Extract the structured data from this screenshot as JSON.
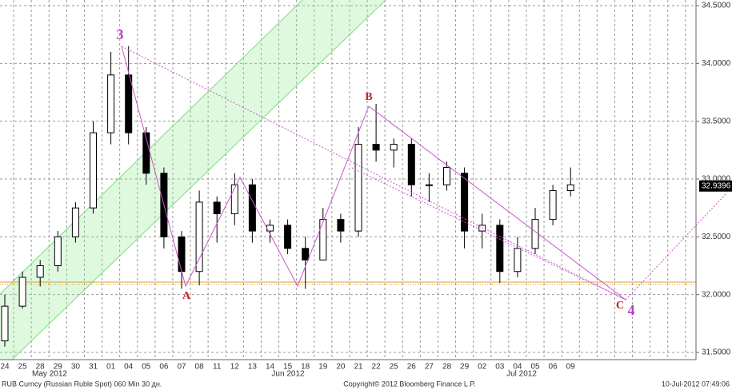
{
  "chart_data": {
    "type": "candlestick",
    "categories": [
      "24",
      "25",
      "28",
      "29",
      "30",
      "31",
      "01",
      "04",
      "05",
      "06",
      "07",
      "08",
      "11",
      "12",
      "13",
      "14",
      "15",
      "18",
      "19",
      "20",
      "21",
      "22",
      "25",
      "26",
      "27",
      "28",
      "29",
      "02",
      "03",
      "04",
      "05",
      "06",
      "09"
    ],
    "month_labels": [
      "May 2012",
      "Jun 2012",
      "Jul 2012"
    ],
    "open": [
      31.6,
      31.9,
      32.15,
      32.25,
      32.5,
      32.75,
      33.4,
      33.9,
      33.4,
      33.05,
      32.5,
      32.2,
      32.8,
      32.7,
      32.95,
      32.55,
      32.6,
      32.4,
      32.3,
      32.65,
      32.55,
      33.3,
      33.25,
      33.3,
      32.95,
      32.95,
      33.05,
      32.55,
      32.6,
      32.2,
      32.4,
      32.65,
      32.9
    ],
    "high": [
      32.0,
      32.2,
      32.3,
      32.55,
      32.8,
      33.5,
      34.1,
      34.15,
      33.45,
      33.1,
      32.55,
      32.9,
      32.85,
      33.05,
      33.0,
      32.65,
      32.65,
      32.5,
      32.75,
      32.7,
      33.45,
      33.65,
      33.35,
      33.35,
      33.05,
      33.15,
      33.1,
      32.7,
      32.65,
      32.5,
      32.75,
      32.95,
      33.1
    ],
    "low": [
      31.55,
      31.88,
      32.07,
      32.2,
      32.45,
      32.7,
      33.3,
      33.3,
      32.95,
      32.4,
      32.05,
      32.08,
      32.45,
      32.6,
      32.45,
      32.45,
      32.35,
      32.05,
      32.3,
      32.45,
      32.5,
      33.15,
      33.1,
      32.85,
      32.8,
      32.9,
      32.4,
      32.4,
      32.1,
      32.15,
      32.35,
      32.6,
      32.85
    ],
    "close": [
      31.9,
      32.15,
      32.25,
      32.5,
      32.75,
      33.4,
      33.9,
      33.4,
      33.05,
      32.5,
      32.2,
      32.8,
      32.7,
      32.95,
      32.55,
      32.6,
      32.4,
      32.3,
      32.65,
      32.55,
      33.3,
      33.25,
      33.3,
      32.95,
      32.95,
      33.1,
      32.55,
      32.6,
      32.2,
      32.4,
      32.65,
      32.9,
      32.95
    ],
    "up_color": "#ffffff",
    "down_color": "#000000",
    "ylim": [
      31.5,
      34.5
    ],
    "yticks": [
      {
        "value": 31.5,
        "label": "31.5000"
      },
      {
        "value": 32,
        "label": "32.0000"
      },
      {
        "value": 32.5,
        "label": "32.5000"
      },
      {
        "value": 33,
        "label": "33.0000"
      },
      {
        "value": 33.5,
        "label": "33.5000"
      },
      {
        "value": 34,
        "label": "34.0000"
      },
      {
        "value": 34.5,
        "label": "34.5000"
      }
    ],
    "grid": true,
    "last_price": 32.9396,
    "annotations": [
      "3",
      "A",
      "B",
      "C",
      "4"
    ],
    "source": "RUB Curncy (Russian Ruble Spot) 060 Min 30 дн.",
    "copyright": "Copyright© 2012 Bloomberg Finance L.P.",
    "timestamp": "10-Jul-2012 07:49:06"
  }
}
